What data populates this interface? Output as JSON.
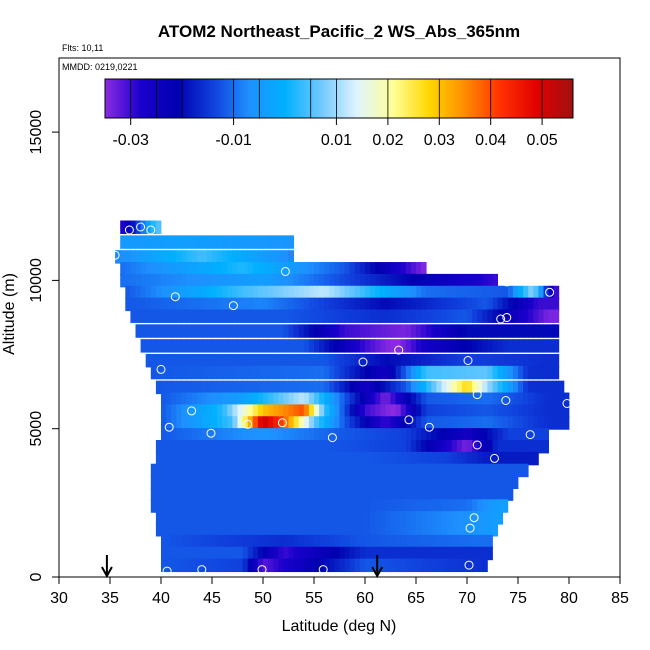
{
  "chart_data": {
    "type": "heatmap",
    "title": "ATOM2 Northeast_Pacific_2 WS_Abs_365nm",
    "flights_label": "Flts: 10,11",
    "dates_label": "MMDD: 0219,0221",
    "xlabel": "Latitude (deg N)",
    "ylabel": "Altitude (m)",
    "xlim": [
      30,
      85
    ],
    "ylim": [
      0,
      17500
    ],
    "x_ticks": [
      "30",
      "35",
      "40",
      "45",
      "50",
      "55",
      "60",
      "65",
      "70",
      "75",
      "80",
      "85"
    ],
    "y_ticks": [
      "0",
      "5000",
      "10000",
      "15000"
    ],
    "colorbar": {
      "range": [
        -0.035,
        0.056
      ],
      "tick_values": [
        -0.03,
        -0.01,
        0.01,
        0.02,
        0.03,
        0.04,
        0.05
      ],
      "tick_labels": [
        "-0.03",
        "-0.01",
        "0.01",
        "0.02",
        "0.03",
        "0.04",
        "0.05"
      ],
      "colors": [
        "#8a2be2",
        "#1a00cc",
        "#0000b0",
        "#1040dd",
        "#1e90ff",
        "#00b0ff",
        "#70c8ff",
        "#dff4ff",
        "#ffff99",
        "#ffd700",
        "#ff8c00",
        "#ff3000",
        "#e00000",
        "#a01010"
      ]
    },
    "arrows_at_lat": [
      34.7,
      61.2
    ],
    "layers": [
      {
        "alt": 11800,
        "lat_min": 36.0,
        "lat_max": 40.0,
        "seg": [
          [
            36.0,
            -0.03
          ],
          [
            38.0,
            -0.012
          ],
          [
            39.5,
            0.005
          ]
        ]
      },
      {
        "alt": 11300,
        "lat_min": 36.0,
        "lat_max": 53.0,
        "seg": [
          [
            36.0,
            -0.005
          ],
          [
            42.0,
            -0.004
          ],
          [
            53.0,
            -0.006
          ]
        ]
      },
      {
        "alt": 10800,
        "lat_min": 35.5,
        "lat_max": 53.0,
        "seg": [
          [
            35.5,
            -0.008
          ],
          [
            44.0,
            0.004
          ],
          [
            53.0,
            -0.008
          ]
        ]
      },
      {
        "alt": 10400,
        "lat_min": 36.0,
        "lat_max": 66.0,
        "seg": [
          [
            36.0,
            -0.01
          ],
          [
            48.0,
            0.002
          ],
          [
            58.0,
            -0.012
          ],
          [
            66.0,
            -0.035
          ]
        ]
      },
      {
        "alt": 10000,
        "lat_min": 36.0,
        "lat_max": 73.0,
        "seg": [
          [
            36.0,
            -0.01
          ],
          [
            50.0,
            -0.004
          ],
          [
            62.0,
            -0.018
          ],
          [
            73.0,
            -0.03
          ]
        ]
      },
      {
        "alt": 9600,
        "lat_min": 36.5,
        "lat_max": 79.0,
        "seg": [
          [
            36.5,
            -0.012
          ],
          [
            48.0,
            0.004
          ],
          [
            56.0,
            0.012
          ],
          [
            66.0,
            -0.01
          ],
          [
            74.0,
            -0.012
          ],
          [
            76.5,
            0.01
          ],
          [
            78.5,
            -0.03
          ]
        ]
      },
      {
        "alt": 9200,
        "lat_min": 36.5,
        "lat_max": 79.0,
        "seg": [
          [
            36.5,
            -0.012
          ],
          [
            50.0,
            -0.008
          ],
          [
            62.0,
            -0.02
          ],
          [
            72.0,
            -0.012
          ],
          [
            77.0,
            -0.03
          ]
        ]
      },
      {
        "alt": 8800,
        "lat_min": 37.0,
        "lat_max": 79.0,
        "seg": [
          [
            37.0,
            -0.012
          ],
          [
            52.0,
            -0.012
          ],
          [
            62.0,
            -0.016
          ],
          [
            70.0,
            -0.012
          ],
          [
            78.0,
            -0.034
          ]
        ]
      },
      {
        "alt": 8300,
        "lat_min": 37.5,
        "lat_max": 79.0,
        "seg": [
          [
            37.5,
            -0.012
          ],
          [
            52.0,
            -0.012
          ],
          [
            58.0,
            -0.03
          ],
          [
            64.0,
            -0.034
          ],
          [
            70.0,
            -0.02
          ],
          [
            78.0,
            -0.02
          ]
        ]
      },
      {
        "alt": 7800,
        "lat_min": 38.0,
        "lat_max": 79.0,
        "seg": [
          [
            38.0,
            -0.012
          ],
          [
            54.0,
            -0.012
          ],
          [
            60.0,
            -0.03
          ],
          [
            63.0,
            -0.036
          ],
          [
            66.0,
            -0.026
          ],
          [
            74.0,
            -0.016
          ],
          [
            78.0,
            -0.016
          ]
        ]
      },
      {
        "alt": 7300,
        "lat_min": 38.5,
        "lat_max": 79.0,
        "seg": [
          [
            38.5,
            -0.012
          ],
          [
            56.0,
            -0.012
          ],
          [
            62.0,
            -0.02
          ],
          [
            70.0,
            -0.014
          ],
          [
            78.0,
            -0.016
          ]
        ]
      },
      {
        "alt": 6900,
        "lat_min": 39.0,
        "lat_max": 79.0,
        "seg": [
          [
            39.0,
            -0.012
          ],
          [
            56.0,
            -0.01
          ],
          [
            62.0,
            -0.026
          ],
          [
            66.0,
            0.004
          ],
          [
            72.0,
            0.006
          ],
          [
            76.0,
            -0.016
          ]
        ]
      },
      {
        "alt": 6400,
        "lat_min": 39.5,
        "lat_max": 79.5,
        "seg": [
          [
            39.5,
            -0.012
          ],
          [
            56.0,
            -0.01
          ],
          [
            60.0,
            -0.026
          ],
          [
            64.0,
            -0.012
          ],
          [
            70.0,
            0.028
          ],
          [
            72.0,
            0.01
          ],
          [
            76.0,
            -0.016
          ]
        ]
      },
      {
        "alt": 6000,
        "lat_min": 40.0,
        "lat_max": 80.0,
        "seg": [
          [
            40.0,
            -0.012
          ],
          [
            48.0,
            -0.004
          ],
          [
            54.0,
            0.012
          ],
          [
            58.0,
            -0.012
          ],
          [
            62.0,
            -0.034
          ],
          [
            66.0,
            -0.012
          ],
          [
            72.0,
            -0.01
          ],
          [
            78.0,
            -0.016
          ]
        ]
      },
      {
        "alt": 5600,
        "lat_min": 40.0,
        "lat_max": 80.0,
        "seg": [
          [
            40.0,
            -0.012
          ],
          [
            46.0,
            0.002
          ],
          [
            50.0,
            0.03
          ],
          [
            54.0,
            0.04
          ],
          [
            56.0,
            0.004
          ],
          [
            60.0,
            -0.03
          ],
          [
            63.0,
            -0.036
          ],
          [
            66.0,
            -0.014
          ],
          [
            72.0,
            -0.012
          ],
          [
            78.0,
            -0.016
          ]
        ]
      },
      {
        "alt": 5200,
        "lat_min": 40.0,
        "lat_max": 80.0,
        "seg": [
          [
            40.0,
            -0.012
          ],
          [
            47.0,
            0.004
          ],
          [
            50.0,
            0.052
          ],
          [
            52.0,
            0.04
          ],
          [
            55.0,
            0.006
          ],
          [
            58.0,
            -0.012
          ],
          [
            62.0,
            -0.03
          ],
          [
            66.0,
            -0.012
          ],
          [
            72.0,
            -0.01
          ],
          [
            78.0,
            -0.016
          ]
        ]
      },
      {
        "alt": 4800,
        "lat_min": 40.0,
        "lat_max": 78.0,
        "seg": [
          [
            40.0,
            -0.012
          ],
          [
            50.0,
            -0.006
          ],
          [
            58.0,
            -0.012
          ],
          [
            64.0,
            -0.014
          ],
          [
            70.0,
            -0.026
          ],
          [
            74.0,
            -0.014
          ]
        ]
      },
      {
        "alt": 4400,
        "lat_min": 39.5,
        "lat_max": 78.0,
        "seg": [
          [
            39.5,
            -0.012
          ],
          [
            56.0,
            -0.012
          ],
          [
            64.0,
            -0.014
          ],
          [
            70.0,
            -0.034
          ],
          [
            73.0,
            -0.016
          ]
        ]
      },
      {
        "alt": 4000,
        "lat_min": 39.5,
        "lat_max": 77.0,
        "seg": [
          [
            39.5,
            -0.012
          ],
          [
            60.0,
            -0.012
          ],
          [
            68.0,
            -0.014
          ],
          [
            72.0,
            -0.018
          ]
        ]
      },
      {
        "alt": 3600,
        "lat_min": 39.0,
        "lat_max": 76.0,
        "seg": [
          [
            39.0,
            -0.012
          ],
          [
            60.0,
            -0.012
          ],
          [
            70.0,
            -0.012
          ]
        ]
      },
      {
        "alt": 3200,
        "lat_min": 39.0,
        "lat_max": 75.0,
        "seg": [
          [
            39.0,
            -0.012
          ],
          [
            60.0,
            -0.012
          ],
          [
            70.0,
            -0.012
          ]
        ]
      },
      {
        "alt": 2800,
        "lat_min": 39.0,
        "lat_max": 74.5,
        "seg": [
          [
            39.0,
            -0.012
          ],
          [
            60.0,
            -0.012
          ],
          [
            70.0,
            -0.012
          ]
        ]
      },
      {
        "alt": 2400,
        "lat_min": 39.0,
        "lat_max": 74.0,
        "seg": [
          [
            39.0,
            -0.012
          ],
          [
            60.0,
            -0.012
          ],
          [
            70.0,
            -0.01
          ],
          [
            73.0,
            -0.004
          ]
        ]
      },
      {
        "alt": 2000,
        "lat_min": 39.5,
        "lat_max": 73.5,
        "seg": [
          [
            39.5,
            -0.012
          ],
          [
            60.0,
            -0.012
          ],
          [
            71.0,
            -0.006
          ],
          [
            73.0,
            -0.004
          ]
        ]
      },
      {
        "alt": 1600,
        "lat_min": 39.5,
        "lat_max": 73.0,
        "seg": [
          [
            39.5,
            -0.012
          ],
          [
            60.0,
            -0.012
          ],
          [
            71.0,
            -0.006
          ],
          [
            73.0,
            -0.004
          ]
        ]
      },
      {
        "alt": 1200,
        "lat_min": 40.0,
        "lat_max": 72.5,
        "seg": [
          [
            40.0,
            -0.012
          ],
          [
            52.0,
            -0.016
          ],
          [
            60.0,
            -0.012
          ],
          [
            71.0,
            -0.01
          ]
        ]
      },
      {
        "alt": 800,
        "lat_min": 40.0,
        "lat_max": 72.5,
        "seg": [
          [
            40.0,
            -0.012
          ],
          [
            48.0,
            -0.012
          ],
          [
            52.0,
            -0.03
          ],
          [
            60.0,
            -0.016
          ],
          [
            72.0,
            -0.016
          ]
        ]
      },
      {
        "alt": 400,
        "lat_min": 40.0,
        "lat_max": 72.0,
        "seg": [
          [
            40.0,
            -0.012
          ],
          [
            48.0,
            -0.014
          ],
          [
            50.0,
            -0.032
          ],
          [
            60.0,
            -0.012
          ],
          [
            72.0,
            -0.016
          ]
        ]
      }
    ],
    "points": [
      [
        40.6,
        200
      ],
      [
        44.0,
        250
      ],
      [
        49.9,
        250
      ],
      [
        55.9,
        250
      ],
      [
        70.2,
        400
      ],
      [
        70.3,
        1650
      ],
      [
        70.7,
        2000
      ],
      [
        72.7,
        4000
      ],
      [
        71.0,
        4450
      ],
      [
        44.9,
        4850
      ],
      [
        56.8,
        4700
      ],
      [
        76.2,
        4800
      ],
      [
        40.8,
        5050
      ],
      [
        48.5,
        5150
      ],
      [
        51.9,
        5200
      ],
      [
        64.3,
        5300
      ],
      [
        66.3,
        5050
      ],
      [
        43.0,
        5600
      ],
      [
        73.8,
        5950
      ],
      [
        79.8,
        5850
      ],
      [
        71.0,
        6150
      ],
      [
        40.0,
        7000
      ],
      [
        59.8,
        7250
      ],
      [
        70.1,
        7300
      ],
      [
        63.3,
        7650
      ],
      [
        47.1,
        9150
      ],
      [
        73.3,
        8700
      ],
      [
        73.9,
        8750
      ],
      [
        41.4,
        9450
      ],
      [
        78.1,
        9600
      ],
      [
        73.9,
        9950
      ],
      [
        52.2,
        10300
      ],
      [
        67.7,
        10600
      ],
      [
        35.5,
        10850
      ],
      [
        36.9,
        11700
      ],
      [
        38.0,
        11800
      ],
      [
        39.0,
        11700
      ]
    ]
  }
}
